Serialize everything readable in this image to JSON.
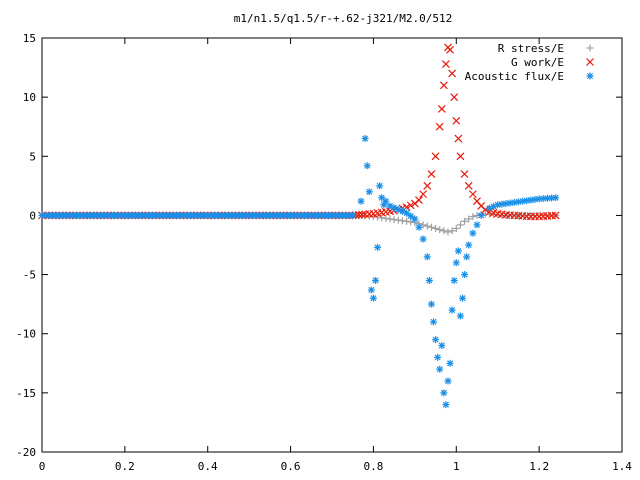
{
  "chart_data": {
    "type": "scatter",
    "title": "m1/n1.5/q1.5/r-+.62-j321/M2.0/512",
    "xlabel": "",
    "ylabel": "",
    "xlim": [
      0,
      1.4
    ],
    "ylim": [
      -20,
      15
    ],
    "x_ticks": [
      0,
      0.2,
      0.4,
      0.6,
      0.8,
      1,
      1.2,
      1.4
    ],
    "x_tick_labels": [
      "0",
      "0.2",
      "0.4",
      "0.6",
      "0.8",
      "1",
      "1.2",
      "1.4"
    ],
    "y_ticks": [
      -20,
      -15,
      -10,
      -5,
      0,
      5,
      10,
      15
    ],
    "y_tick_labels": [
      "-20",
      "-15",
      "-10",
      "-5",
      "0",
      "5",
      "10",
      "15"
    ],
    "grid": false,
    "legend_position": "top-right",
    "series": [
      {
        "name": "R stress/E",
        "marker": "plus",
        "color": "#a0a0a0",
        "x": [
          0.0,
          0.05,
          0.1,
          0.15,
          0.2,
          0.25,
          0.3,
          0.35,
          0.4,
          0.45,
          0.5,
          0.55,
          0.6,
          0.65,
          0.7,
          0.75,
          0.78,
          0.8,
          0.82,
          0.84,
          0.86,
          0.88,
          0.9,
          0.92,
          0.94,
          0.96,
          0.97,
          0.98,
          0.99,
          1.0,
          1.01,
          1.02,
          1.03,
          1.04,
          1.05,
          1.06,
          1.08,
          1.1,
          1.12,
          1.15,
          1.18,
          1.21,
          1.24
        ],
        "y": [
          0.0,
          0.0,
          0.0,
          0.0,
          0.0,
          0.0,
          0.0,
          0.0,
          0.0,
          0.0,
          0.0,
          0.0,
          0.0,
          0.0,
          0.0,
          0.0,
          -0.05,
          -0.1,
          -0.2,
          -0.3,
          -0.4,
          -0.5,
          -0.6,
          -0.8,
          -1.0,
          -1.2,
          -1.3,
          -1.4,
          -1.3,
          -1.1,
          -0.8,
          -0.5,
          -0.3,
          -0.1,
          0.0,
          0.1,
          0.1,
          0.05,
          0.0,
          0.0,
          0.0,
          0.0,
          0.0
        ]
      },
      {
        "name": "G work/E",
        "marker": "cross",
        "color": "#e8190a",
        "x": [
          0.0,
          0.05,
          0.1,
          0.15,
          0.2,
          0.25,
          0.3,
          0.35,
          0.4,
          0.45,
          0.5,
          0.55,
          0.6,
          0.65,
          0.7,
          0.75,
          0.78,
          0.8,
          0.82,
          0.84,
          0.86,
          0.88,
          0.9,
          0.91,
          0.92,
          0.93,
          0.94,
          0.95,
          0.96,
          0.965,
          0.97,
          0.975,
          0.98,
          0.985,
          0.99,
          0.995,
          1.0,
          1.005,
          1.01,
          1.02,
          1.03,
          1.04,
          1.05,
          1.06,
          1.07,
          1.08,
          1.1,
          1.12,
          1.14,
          1.16,
          1.18,
          1.2,
          1.22,
          1.24
        ],
        "y": [
          0.0,
          0.0,
          0.0,
          0.0,
          0.0,
          0.0,
          0.0,
          0.0,
          0.0,
          0.0,
          0.0,
          0.0,
          0.0,
          0.0,
          0.0,
          0.0,
          0.1,
          0.15,
          0.25,
          0.35,
          0.5,
          0.7,
          1.0,
          1.3,
          1.8,
          2.5,
          3.5,
          5.0,
          7.5,
          9.0,
          11.0,
          12.8,
          14.2,
          14.0,
          12.0,
          10.0,
          8.0,
          6.5,
          5.0,
          3.5,
          2.5,
          1.8,
          1.2,
          0.8,
          0.5,
          0.3,
          0.15,
          0.05,
          0.0,
          -0.05,
          -0.1,
          -0.1,
          -0.05,
          0.0
        ]
      },
      {
        "name": "Acoustic flux/E",
        "marker": "star",
        "color": "#1a8fe8",
        "x": [
          0.0,
          0.05,
          0.1,
          0.15,
          0.2,
          0.25,
          0.3,
          0.35,
          0.4,
          0.45,
          0.5,
          0.55,
          0.6,
          0.65,
          0.7,
          0.75,
          0.77,
          0.78,
          0.785,
          0.79,
          0.795,
          0.8,
          0.805,
          0.81,
          0.815,
          0.82,
          0.825,
          0.83,
          0.84,
          0.86,
          0.88,
          0.9,
          0.91,
          0.92,
          0.93,
          0.935,
          0.94,
          0.945,
          0.95,
          0.955,
          0.96,
          0.965,
          0.97,
          0.975,
          0.98,
          0.985,
          0.99,
          0.995,
          1.0,
          1.005,
          1.01,
          1.015,
          1.02,
          1.025,
          1.03,
          1.04,
          1.05,
          1.06,
          1.08,
          1.1,
          1.12,
          1.14,
          1.16,
          1.18,
          1.2,
          1.22,
          1.24
        ],
        "y": [
          0.0,
          0.0,
          0.0,
          0.0,
          0.0,
          0.0,
          0.0,
          0.0,
          0.0,
          0.0,
          0.0,
          0.0,
          0.0,
          0.0,
          0.0,
          0.0,
          1.2,
          6.5,
          4.2,
          2.0,
          -6.3,
          -7.0,
          -5.5,
          -2.7,
          2.5,
          1.5,
          0.9,
          1.2,
          0.8,
          0.5,
          0.2,
          -0.3,
          -1.0,
          -2.0,
          -3.5,
          -5.5,
          -7.5,
          -9.0,
          -10.5,
          -12.0,
          -13.0,
          -11.0,
          -15.0,
          -16.0,
          -14.0,
          -12.5,
          -8.0,
          -5.5,
          -4.0,
          -3.0,
          -8.5,
          -7.0,
          -5.0,
          -3.5,
          -2.5,
          -1.5,
          -0.8,
          0.0,
          0.6,
          0.9,
          1.0,
          1.1,
          1.2,
          1.3,
          1.4,
          1.45,
          1.5
        ]
      }
    ]
  }
}
